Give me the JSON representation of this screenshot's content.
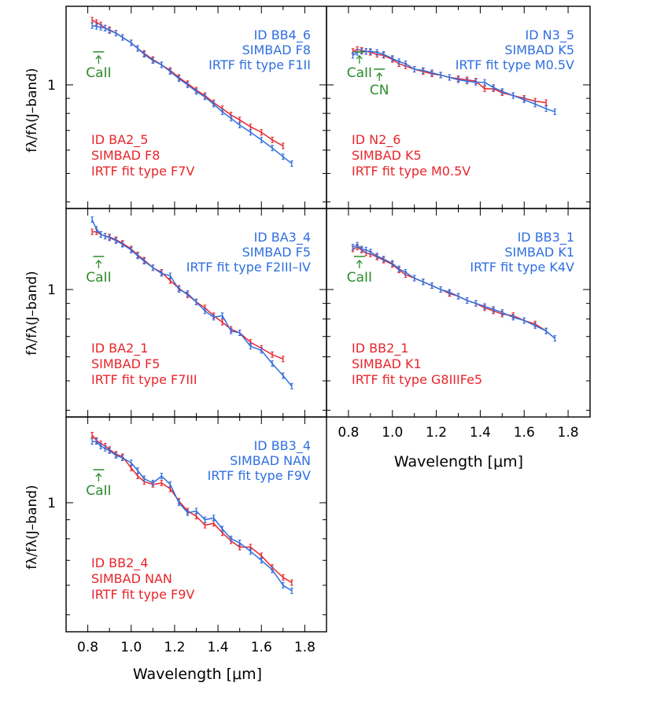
{
  "figure": {
    "ylabel": "fλ/fλ(J–band)",
    "xlabel": "Wavelength [μm]",
    "x_ticks": [
      "0.8",
      "1.0",
      "1.2",
      "1.4",
      "1.6",
      "1.8"
    ],
    "y_tick_one": "1",
    "marker_labels": {
      "caII": "CaII",
      "cn": "CN"
    }
  },
  "colors": {
    "observed": "#e8252b",
    "template": "#2f6fe0",
    "marker": "#2e8b2e",
    "axis": "#000000"
  },
  "chart_data": [
    {
      "type": "line",
      "xlim": [
        0.7,
        1.9
      ],
      "ylim_log": [
        0.38,
        1.85
      ],
      "markers": [
        {
          "name": "CaII",
          "x": 0.85
        }
      ],
      "template_label": [
        "ID BB4_6",
        "SIMBAD F8",
        "IRTF fit type F1II"
      ],
      "observed_label": [
        "ID BA2_5",
        "SIMBAD F8",
        "IRTF fit type F7V"
      ],
      "series": [
        {
          "name": "observed",
          "x": [
            0.82,
            0.84,
            0.86,
            0.88,
            0.9,
            0.93,
            0.96,
            1.0,
            1.03,
            1.06,
            1.1,
            1.14,
            1.18,
            1.22,
            1.26,
            1.3,
            1.34,
            1.38,
            1.42,
            1.46,
            1.5,
            1.55,
            1.6,
            1.65,
            1.7
          ],
          "y": [
            1.66,
            1.63,
            1.6,
            1.56,
            1.54,
            1.5,
            1.45,
            1.39,
            1.33,
            1.28,
            1.22,
            1.17,
            1.12,
            1.06,
            1.01,
            0.96,
            0.92,
            0.87,
            0.83,
            0.79,
            0.76,
            0.72,
            0.69,
            0.65,
            0.62
          ]
        },
        {
          "name": "template",
          "x": [
            0.82,
            0.84,
            0.86,
            0.88,
            0.9,
            0.93,
            0.96,
            1.0,
            1.03,
            1.06,
            1.1,
            1.14,
            1.18,
            1.22,
            1.26,
            1.3,
            1.34,
            1.38,
            1.42,
            1.46,
            1.5,
            1.55,
            1.6,
            1.65,
            1.7,
            1.74
          ],
          "y": [
            1.59,
            1.58,
            1.57,
            1.56,
            1.53,
            1.5,
            1.45,
            1.39,
            1.33,
            1.27,
            1.21,
            1.17,
            1.11,
            1.05,
            1.0,
            0.95,
            0.91,
            0.86,
            0.81,
            0.77,
            0.73,
            0.69,
            0.65,
            0.61,
            0.57,
            0.54
          ]
        }
      ]
    },
    {
      "type": "line",
      "xlim": [
        0.7,
        1.9
      ],
      "ylim_log": [
        0.38,
        1.85
      ],
      "markers": [
        {
          "name": "CaII",
          "x": 0.85
        },
        {
          "name": "CN",
          "x": 0.93
        }
      ],
      "template_label": [
        "ID N3_5",
        "SIMBAD K5",
        "IRTF fit type M0.5V"
      ],
      "observed_label": [
        "ID N2_6",
        "SIMBAD K5",
        "IRTF fit type M0.5V"
      ],
      "series": [
        {
          "name": "observed",
          "x": [
            0.82,
            0.84,
            0.86,
            0.88,
            0.9,
            0.93,
            0.96,
            1.0,
            1.03,
            1.06,
            1.1,
            1.14,
            1.18,
            1.22,
            1.26,
            1.3,
            1.34,
            1.38,
            1.42,
            1.46,
            1.5,
            1.55,
            1.6,
            1.65,
            1.7
          ],
          "y": [
            1.3,
            1.32,
            1.31,
            1.3,
            1.29,
            1.27,
            1.26,
            1.22,
            1.18,
            1.16,
            1.13,
            1.11,
            1.09,
            1.08,
            1.06,
            1.05,
            1.04,
            1.03,
            0.97,
            0.97,
            0.94,
            0.92,
            0.9,
            0.88,
            0.87
          ]
        },
        {
          "name": "template",
          "x": [
            0.82,
            0.84,
            0.86,
            0.88,
            0.9,
            0.93,
            0.96,
            1.0,
            1.03,
            1.06,
            1.1,
            1.14,
            1.18,
            1.22,
            1.26,
            1.3,
            1.34,
            1.38,
            1.42,
            1.46,
            1.5,
            1.55,
            1.6,
            1.65,
            1.7,
            1.74
          ],
          "y": [
            1.26,
            1.29,
            1.3,
            1.3,
            1.3,
            1.29,
            1.27,
            1.23,
            1.2,
            1.18,
            1.13,
            1.12,
            1.1,
            1.08,
            1.06,
            1.04,
            1.03,
            1.02,
            1.02,
            0.98,
            0.95,
            0.92,
            0.89,
            0.86,
            0.83,
            0.81
          ]
        }
      ]
    },
    {
      "type": "line",
      "xlim": [
        0.7,
        1.9
      ],
      "ylim_log": [
        0.38,
        1.85
      ],
      "markers": [
        {
          "name": "CaII",
          "x": 0.85
        }
      ],
      "template_label": [
        "ID BA3_4",
        "SIMBAD F5",
        "IRTF fit type F2III–IV"
      ],
      "observed_label": [
        "ID BA2_1",
        "SIMBAD F5",
        "IRTF fit type F7III"
      ],
      "series": [
        {
          "name": "observed",
          "x": [
            0.82,
            0.84,
            0.86,
            0.88,
            0.9,
            0.93,
            0.96,
            1.0,
            1.03,
            1.06,
            1.1,
            1.14,
            1.18,
            1.22,
            1.26,
            1.3,
            1.34,
            1.38,
            1.42,
            1.46,
            1.5,
            1.55,
            1.6,
            1.65,
            1.7
          ],
          "y": [
            1.55,
            1.55,
            1.52,
            1.5,
            1.49,
            1.46,
            1.42,
            1.36,
            1.3,
            1.25,
            1.18,
            1.14,
            1.07,
            1.01,
            0.96,
            0.91,
            0.87,
            0.82,
            0.78,
            0.74,
            0.72,
            0.67,
            0.64,
            0.61,
            0.59
          ]
        },
        {
          "name": "template",
          "x": [
            0.82,
            0.84,
            0.86,
            0.88,
            0.9,
            0.93,
            0.96,
            1.0,
            1.03,
            1.06,
            1.1,
            1.14,
            1.18,
            1.22,
            1.26,
            1.3,
            1.34,
            1.38,
            1.42,
            1.46,
            1.5,
            1.55,
            1.6,
            1.65,
            1.7,
            1.74
          ],
          "y": [
            1.7,
            1.58,
            1.52,
            1.5,
            1.48,
            1.45,
            1.41,
            1.35,
            1.29,
            1.24,
            1.18,
            1.13,
            1.11,
            1.0,
            0.97,
            0.91,
            0.85,
            0.81,
            0.82,
            0.73,
            0.72,
            0.65,
            0.63,
            0.57,
            0.52,
            0.48
          ]
        }
      ]
    },
    {
      "type": "line",
      "xlim": [
        0.7,
        1.9
      ],
      "ylim_log": [
        0.38,
        1.85
      ],
      "markers": [
        {
          "name": "CaII",
          "x": 0.85
        }
      ],
      "template_label": [
        "ID BB3_1",
        "SIMBAD K1",
        "IRTF fit type K4V"
      ],
      "observed_label": [
        "ID BB2_1",
        "SIMBAD K1",
        "IRTF fit type G8IIIFe5"
      ],
      "series": [
        {
          "name": "observed",
          "x": [
            0.82,
            0.84,
            0.86,
            0.88,
            0.9,
            0.93,
            0.96,
            1.0,
            1.03,
            1.06,
            1.1,
            1.14,
            1.18,
            1.22,
            1.26,
            1.3,
            1.34,
            1.38,
            1.42,
            1.46,
            1.5,
            1.55,
            1.6,
            1.65,
            1.7
          ],
          "y": [
            1.36,
            1.38,
            1.35,
            1.32,
            1.31,
            1.28,
            1.25,
            1.21,
            1.16,
            1.12,
            1.09,
            1.06,
            1.03,
            1.0,
            0.97,
            0.95,
            0.92,
            0.9,
            0.87,
            0.85,
            0.83,
            0.82,
            0.79,
            0.77,
            0.73
          ]
        },
        {
          "name": "template",
          "x": [
            0.82,
            0.84,
            0.86,
            0.88,
            0.9,
            0.93,
            0.96,
            1.0,
            1.03,
            1.06,
            1.1,
            1.14,
            1.18,
            1.22,
            1.26,
            1.3,
            1.34,
            1.38,
            1.42,
            1.46,
            1.5,
            1.55,
            1.6,
            1.65,
            1.7,
            1.74
          ],
          "y": [
            1.38,
            1.4,
            1.36,
            1.35,
            1.33,
            1.29,
            1.26,
            1.22,
            1.17,
            1.14,
            1.09,
            1.06,
            1.03,
            1.0,
            0.98,
            0.95,
            0.92,
            0.9,
            0.88,
            0.86,
            0.84,
            0.81,
            0.79,
            0.76,
            0.73,
            0.69
          ]
        }
      ]
    },
    {
      "type": "line",
      "xlim": [
        0.7,
        1.9
      ],
      "ylim_log": [
        0.45,
        1.7
      ],
      "markers": [
        {
          "name": "CaII",
          "x": 0.85
        }
      ],
      "template_label": [
        "ID BB3_4",
        "SIMBAD NAN",
        "IRTF fit type F9V"
      ],
      "observed_label": [
        "ID BB2_4",
        "SIMBAD NAN",
        "IRTF fit type F9V"
      ],
      "series": [
        {
          "name": "observed",
          "x": [
            0.82,
            0.84,
            0.86,
            0.88,
            0.9,
            0.93,
            0.96,
            1.0,
            1.03,
            1.06,
            1.1,
            1.14,
            1.18,
            1.22,
            1.26,
            1.3,
            1.34,
            1.38,
            1.42,
            1.46,
            1.5,
            1.55,
            1.6,
            1.65,
            1.7,
            1.74
          ],
          "y": [
            1.52,
            1.47,
            1.44,
            1.42,
            1.39,
            1.35,
            1.33,
            1.24,
            1.18,
            1.14,
            1.12,
            1.13,
            1.09,
            1.01,
            0.95,
            0.92,
            0.87,
            0.88,
            0.83,
            0.79,
            0.76,
            0.76,
            0.72,
            0.67,
            0.63,
            0.61
          ]
        },
        {
          "name": "template",
          "x": [
            0.82,
            0.84,
            0.86,
            0.88,
            0.9,
            0.93,
            0.96,
            1.0,
            1.03,
            1.06,
            1.1,
            1.14,
            1.18,
            1.22,
            1.26,
            1.3,
            1.34,
            1.38,
            1.42,
            1.46,
            1.5,
            1.55,
            1.6,
            1.65,
            1.7,
            1.74
          ],
          "y": [
            1.46,
            1.46,
            1.42,
            1.4,
            1.38,
            1.34,
            1.32,
            1.28,
            1.22,
            1.16,
            1.13,
            1.18,
            1.12,
            1.0,
            0.94,
            0.95,
            0.9,
            0.91,
            0.85,
            0.8,
            0.78,
            0.74,
            0.7,
            0.66,
            0.6,
            0.58
          ]
        }
      ]
    }
  ]
}
